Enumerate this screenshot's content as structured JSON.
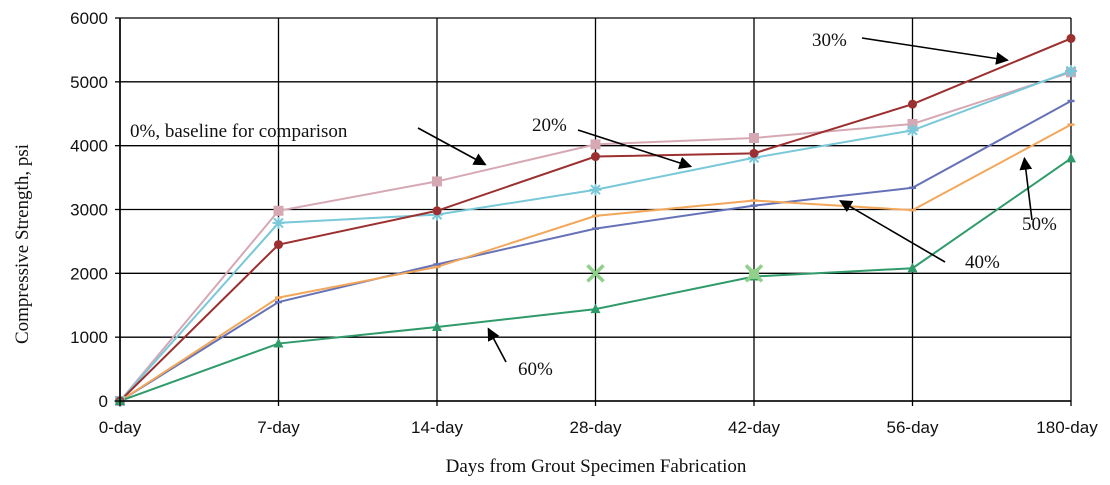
{
  "chart_data": {
    "type": "line",
    "title": "",
    "xlabel": "Days from Grout Specimen Fabrication",
    "ylabel": "Compressive Strength, psi",
    "categories": [
      "0-day",
      "7-day",
      "14-day",
      "28-day",
      "42-day",
      "56-day",
      "180-day"
    ],
    "ylim": [
      0,
      6000
    ],
    "yticks": [
      0,
      1000,
      2000,
      3000,
      4000,
      5000,
      6000
    ],
    "grid": true,
    "legend": "none",
    "series": [
      {
        "name": "0%, baseline for comparison",
        "color": "#d6a8b4",
        "marker": "square",
        "values": [
          0,
          2980,
          3440,
          4020,
          4120,
          4340,
          5150
        ]
      },
      {
        "name": "20%",
        "color": "#79c8d9",
        "marker": "star",
        "values": [
          0,
          2790,
          2920,
          3310,
          3810,
          4240,
          5170
        ]
      },
      {
        "name": "30%",
        "color": "#9c2f2f",
        "marker": "circle",
        "values": [
          0,
          2450,
          2980,
          3830,
          3880,
          4650,
          5680
        ]
      },
      {
        "name": "40%",
        "color": "#6672b8",
        "marker": "dash",
        "values": [
          0,
          1550,
          2140,
          2700,
          3060,
          3340,
          4700
        ]
      },
      {
        "name": "50%",
        "color": "#f2a75a",
        "marker": "dash",
        "values": [
          0,
          1620,
          2100,
          2900,
          3140,
          2990,
          4330
        ]
      },
      {
        "name": "60%",
        "color": "#2f9a6a",
        "marker": "triangle",
        "values": [
          0,
          900,
          1160,
          1440,
          1950,
          2080,
          3800
        ]
      }
    ],
    "extra_markers": [
      {
        "category": "28-day",
        "value": 2000,
        "shape": "x",
        "color": "#8fd18b"
      },
      {
        "category": "42-day",
        "value": 2000,
        "shape": "x",
        "color": "#8fd18b"
      },
      {
        "category": "42-day",
        "value": 1990,
        "shape": "square",
        "color": "#8fd18b"
      }
    ],
    "annotations": [
      {
        "text": "30%",
        "series": "30%",
        "category_index": 5.65
      },
      {
        "text": "0%, baseline for comparison",
        "series": "0%, baseline for comparison",
        "category_index": 2.35
      },
      {
        "text": "20%",
        "series": "20%",
        "category_index": 3.65
      },
      {
        "text": "40%",
        "series": "40%",
        "category_index": 4.5
      },
      {
        "text": "50%",
        "series": "50%",
        "category_index": 5.7
      },
      {
        "text": "60%",
        "series": "60%",
        "category_index": 2.3
      }
    ]
  }
}
